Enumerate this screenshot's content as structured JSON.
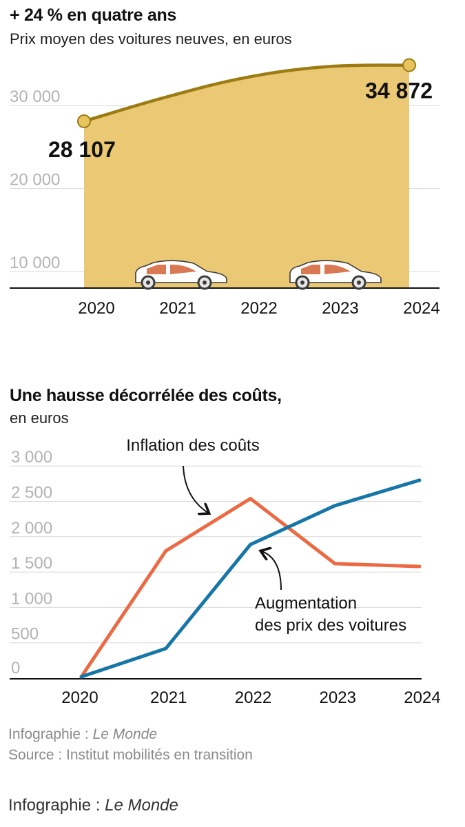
{
  "chart_data": [
    {
      "type": "area",
      "title": "+ 24 % en quatre ans",
      "subtitle": "Prix moyen des voitures neuves, en euros",
      "x": [
        "2020",
        "2021",
        "2022",
        "2023",
        "2024"
      ],
      "values": [
        28107,
        31000,
        33400,
        34700,
        34872
      ],
      "yticks": [
        "10 000",
        "20 000",
        "30 000"
      ],
      "ytick_values": [
        10000,
        20000,
        30000
      ],
      "ylim": [
        8000,
        35500
      ],
      "data_labels": [
        {
          "x": "2020",
          "text": "28 107"
        },
        {
          "x": "2024",
          "text": "34 872"
        }
      ],
      "grid": true,
      "colors": {
        "fill": "#ebc873",
        "line": "#9c7c12",
        "marker": "#e7c45e"
      }
    },
    {
      "type": "line",
      "title": "Une hausse décorrélée des coûts,",
      "subtitle": "en euros",
      "x": [
        "2020",
        "2021",
        "2022",
        "2023",
        "2024"
      ],
      "yticks": [
        "0",
        "500",
        "1 000",
        "1 500",
        "2 000",
        "2 500",
        "3 000"
      ],
      "ytick_values": [
        0,
        500,
        1000,
        1500,
        2000,
        2500,
        3000
      ],
      "ylim": [
        -300,
        3000
      ],
      "series": [
        {
          "name": "Inflation des coûts",
          "values": [
            0,
            1780,
            2520,
            1600,
            1560
          ],
          "color": "#ec6a43"
        },
        {
          "name": "Augmentation des prix des voitures",
          "values": [
            0,
            400,
            1870,
            2420,
            2780
          ],
          "color": "#1676a8"
        }
      ],
      "annotations": [
        {
          "series": 0,
          "lines": [
            "Inflation des coûts"
          ]
        },
        {
          "series": 1,
          "lines": [
            "Augmentation",
            "des prix des voitures"
          ]
        }
      ],
      "grid": true
    }
  ],
  "footer": {
    "credit_prefix": "Infographie : ",
    "credit_name": "Le Monde",
    "source": "Source : Institut mobilités en transition"
  },
  "bottom_credit": {
    "prefix": "Infographie : ",
    "name": "Le Monde"
  }
}
